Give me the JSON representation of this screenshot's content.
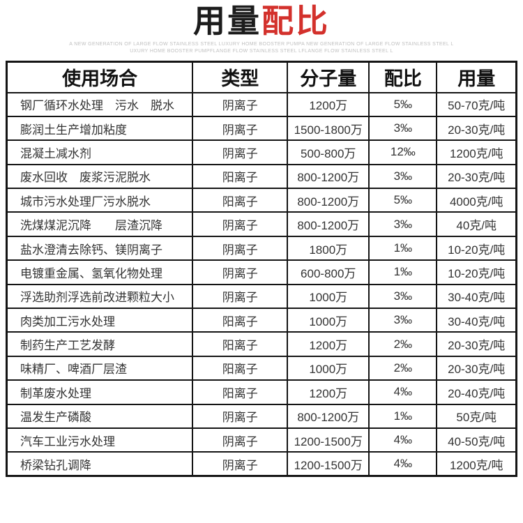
{
  "page": {
    "title_black": "用量",
    "title_red": "配比",
    "accent_red": "#d3312c",
    "subtitle_line1": "A NEW GENERATION OF LARGE FLOW STAINLESS STEEL LUXURY HOME BOOSTER PUMPA NEW GENERATION OF LARGE FLOW STAINLESS STEEL L",
    "subtitle_line2": "UXURY HOME BOOSTER PUMPFLANGE FLOW STAINLESS STEEL LFLANGE FLOW STAINLESS STEEL L"
  },
  "table": {
    "headers": [
      "使用场合",
      "类型",
      "分子量",
      "配比",
      "用量"
    ],
    "rows": [
      {
        "cells": [
          "钢厂循环水处理　污水　脱水",
          "阴离子",
          "1200万",
          "5‰",
          "50-70克/吨"
        ]
      },
      {
        "cells": [
          "膨润土生产增加粘度",
          "阴离子",
          "1500-1800万",
          "3‰",
          "20-30克/吨"
        ]
      },
      {
        "cells": [
          "混凝土减水剂",
          "阴离子",
          "500-800万",
          "12‰",
          "1200克/吨"
        ]
      },
      {
        "cells": [
          "废水回收　废浆污泥脱水",
          "阳离子",
          "800-1200万",
          "3‰",
          "20-30克/吨"
        ]
      },
      {
        "cells": [
          "城市污水处理厂污水脱水",
          "阳离子",
          "800-1200万",
          "5‰",
          "4000克/吨"
        ]
      },
      {
        "cells": [
          "洗煤煤泥沉降　　层渣沉降",
          "阴离子",
          "800-1200万",
          "3‰",
          "40克/吨"
        ]
      },
      {
        "cells": [
          "盐水澄清去除钙、镁阴离子",
          "阴离子",
          "1800万",
          "1‰",
          "10-20克/吨"
        ]
      },
      {
        "cells": [
          "电镀重金属、氢氧化物处理",
          "阴离子",
          "600-800万",
          "1‰",
          "10-20克/吨"
        ]
      },
      {
        "cells": [
          "浮选助剂浮选前改进颗粒大小",
          "阴离子",
          "1000万",
          "3‰",
          "30-40克/吨"
        ]
      },
      {
        "cells": [
          "肉类加工污水处理",
          "阳离子",
          "1000万",
          "3‰",
          "30-40克/吨"
        ]
      },
      {
        "cells": [
          "制药生产工艺发酵",
          "阳离子",
          "1200万",
          "2‰",
          "20-30克/吨"
        ]
      },
      {
        "cells": [
          "味精厂、啤酒厂层渣",
          "阳离子",
          "1000万",
          "2‰",
          "20-30克/吨"
        ]
      },
      {
        "cells": [
          "制革废水处理",
          "阳离子",
          "1200万",
          "4‰",
          "20-40克/吨"
        ]
      },
      {
        "cells": [
          "温发生产磷酸",
          "阴离子",
          "800-1200万",
          "1‰",
          "50克/吨"
        ]
      },
      {
        "cells": [
          "汽车工业污水处理",
          "阴离子",
          "1200-1500万",
          "4‰",
          "40-50克/吨"
        ]
      },
      {
        "cells": [
          "桥梁钻孔调降",
          "阴离子",
          "1200-1500万",
          "4‰",
          "1200克/吨"
        ]
      }
    ]
  }
}
